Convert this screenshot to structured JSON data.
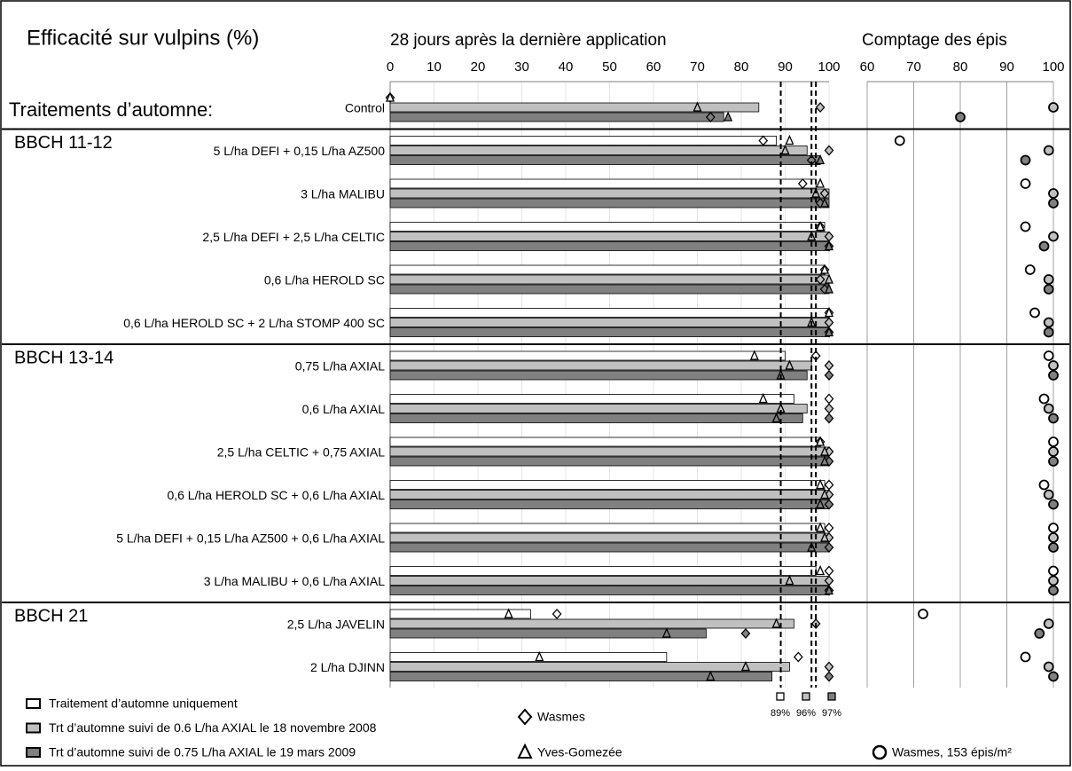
{
  "title": "Efficacité sur vulpins (%)",
  "chart_data": {
    "type": "bar",
    "orientation": "horizontal",
    "xlabel": "28 jours après la dernière application",
    "x2label": "Comptage des épis",
    "xlim": [
      0,
      100
    ],
    "xticks": [
      0,
      10,
      20,
      30,
      40,
      50,
      60,
      70,
      80,
      90,
      100
    ],
    "x2lim": [
      60,
      100
    ],
    "x2ticks": [
      60,
      70,
      80,
      90,
      100
    ],
    "groups": [
      {
        "name": "Traitements d’automne:",
        "categories": [
          "Control"
        ]
      },
      {
        "name": "BBCH 11-12",
        "categories": [
          "5 L/ha DEFI + 0,15 L/ha AZ500",
          "3 L/ha MALIBU",
          "2,5 L/ha DEFI + 2,5 L/ha CELTIC",
          "0,6 L/ha HEROLD SC",
          "0,6 L/ha HEROLD SC + 2 L/ha STOMP 400 SC"
        ]
      },
      {
        "name": "BBCH 13-14",
        "categories": [
          "0,75 L/ha AXIAL",
          "0,6 L/ha AXIAL",
          "2,5 L/ha CELTIC + 0,75 AXIAL",
          "0,6 L/ha HEROLD SC + 0,6 L/ha AXIAL",
          "5 L/ha DEFI + 0,15 L/ha AZ500 + 0,6 L/ha AXIAL",
          "3 L/ha MALIBU + 0,6 L/ha AXIAL"
        ]
      },
      {
        "name": "BBCH 21",
        "categories": [
          "2,5 L/ha JAVELIN",
          "2 L/ha DJINN"
        ]
      }
    ],
    "series": [
      {
        "name": "Traitement d’automne uniquement",
        "color": "#ffffff",
        "values": [
          0,
          88,
          97,
          99,
          99,
          100,
          90,
          92,
          98,
          99,
          99,
          97,
          32,
          63
        ],
        "wasmes": [
          0,
          85,
          94,
          98,
          99,
          100,
          97,
          100,
          98,
          100,
          100,
          100,
          38,
          93
        ],
        "yves_gomezee": [
          0,
          91,
          98,
          98,
          99,
          100,
          83,
          85,
          98,
          98,
          98,
          98,
          27,
          34
        ],
        "epis": [
          null,
          67,
          94,
          94,
          95,
          96,
          99,
          98,
          100,
          98,
          100,
          100,
          72,
          94
        ]
      },
      {
        "name": "Trt d’automne suivi de 0.6 L/ha AXIAL le 18 novembre 2008",
        "color": "#c0c0c0",
        "values": [
          84,
          95,
          100,
          100,
          100,
          100,
          96,
          95,
          100,
          100,
          100,
          100,
          92,
          91
        ],
        "wasmes": [
          98,
          100,
          99,
          100,
          98,
          100,
          100,
          100,
          100,
          100,
          100,
          100,
          97,
          100
        ],
        "yves_gomezee": [
          70,
          90,
          97,
          96,
          100,
          96,
          91,
          89,
          99,
          99,
          99,
          91,
          88,
          81
        ],
        "epis": [
          100,
          99,
          100,
          100,
          99,
          99,
          100,
          99,
          100,
          99,
          100,
          100,
          99,
          99
        ]
      },
      {
        "name": "Trt d’automne suivi de 0.75 L/ha AXIAL le 19 mars 2009",
        "color": "#808080",
        "values": [
          76,
          98,
          100,
          100,
          100,
          100,
          95,
          94,
          100,
          100,
          100,
          100,
          72,
          87
        ],
        "wasmes": [
          73,
          96,
          98,
          100,
          99,
          100,
          100,
          100,
          100,
          100,
          100,
          100,
          81,
          100
        ],
        "yves_gomezee": [
          77,
          98,
          99,
          100,
          100,
          100,
          89,
          88,
          99,
          98,
          96,
          100,
          63,
          73
        ],
        "epis": [
          80,
          94,
          100,
          98,
          99,
          99,
          100,
          100,
          100,
          100,
          100,
          100,
          97,
          100
        ]
      }
    ],
    "marker_legend": [
      {
        "name": "Wasmes",
        "shape": "diamond"
      },
      {
        "name": "Yves-Gomezée",
        "shape": "triangle"
      },
      {
        "name": "Wasmes, 153 épis/m²",
        "shape": "circle"
      }
    ],
    "reference_lines": [
      {
        "value": 89,
        "label": "89%",
        "color": "#ffffff"
      },
      {
        "value": 96,
        "label": "96%",
        "color": "#c0c0c0"
      },
      {
        "value": 97,
        "label": "97%",
        "color": "#808080"
      }
    ]
  }
}
